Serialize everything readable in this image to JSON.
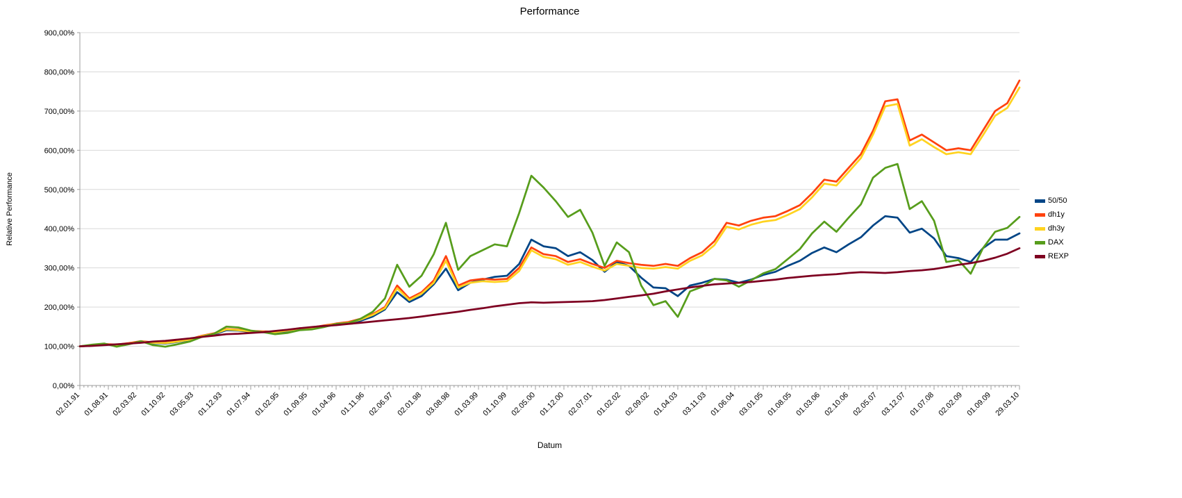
{
  "chart_data": {
    "type": "line",
    "title": "Performance",
    "xlabel": "Datum",
    "ylabel": "Relative Performance",
    "ylim": [
      0,
      900
    ],
    "ytick_step": 100,
    "ytick_labels": [
      "0,00%",
      "100,00%",
      "200,00%",
      "300,00%",
      "400,00%",
      "500,00%",
      "600,00%",
      "700,00%",
      "800,00%",
      "900,00%"
    ],
    "x_tick_labels": [
      "02.01.91",
      "01.08.91",
      "02.03.92",
      "01.10.92",
      "03.05.93",
      "01.12.93",
      "01.07.94",
      "01.02.95",
      "01.09.95",
      "01.04.96",
      "01.11.96",
      "02.06.97",
      "02.01.98",
      "03.08.98",
      "01.03.99",
      "01.10.99",
      "02.05.00",
      "01.12.00",
      "02.07.01",
      "01.02.02",
      "02.09.02",
      "01.04.03",
      "03.11.03",
      "01.06.04",
      "03.01.05",
      "01.08.05",
      "01.03.06",
      "02.10.06",
      "02.05.07",
      "03.12.07",
      "01.07.08",
      "02.02.09",
      "01.09.09",
      "29.03.10"
    ],
    "x_minor_per_major": 7,
    "sampling": "quarterly estimates from 02.01.1991 to 29.03.2010",
    "grid": "horizontal",
    "legend_position": "right",
    "colors": {
      "grid": "#d9d9d9",
      "axis": "#9c9c9c",
      "text": "#000000",
      "background": "#ffffff"
    },
    "series": [
      {
        "name": "50/50",
        "color": "#004586",
        "values": [
          100,
          102,
          105,
          103,
          106,
          111,
          108,
          107,
          111,
          116,
          124,
          130,
          141,
          140,
          137,
          136,
          135,
          138,
          143,
          145,
          150,
          155,
          158,
          165,
          176,
          194,
          238,
          213,
          228,
          258,
          298,
          243,
          262,
          270,
          277,
          280,
          310,
          372,
          355,
          350,
          330,
          340,
          320,
          290,
          315,
          305,
          275,
          250,
          248,
          228,
          255,
          262,
          272,
          270,
          262,
          270,
          282,
          290,
          305,
          318,
          338,
          352,
          340,
          360,
          378,
          408,
          432,
          428,
          390,
          400,
          375,
          330,
          325,
          315,
          350,
          372,
          372,
          388
        ]
      },
      {
        "name": "dh1y",
        "color": "#FF420E",
        "values": [
          100,
          103,
          106,
          104,
          108,
          113,
          110,
          109,
          113,
          118,
          127,
          133,
          144,
          142,
          139,
          138,
          137,
          141,
          146,
          148,
          153,
          158,
          162,
          170,
          182,
          200,
          255,
          222,
          238,
          268,
          330,
          255,
          268,
          272,
          270,
          272,
          300,
          352,
          335,
          330,
          315,
          322,
          310,
          300,
          318,
          312,
          308,
          305,
          310,
          305,
          325,
          340,
          368,
          415,
          408,
          420,
          428,
          432,
          445,
          460,
          490,
          525,
          520,
          555,
          590,
          650,
          725,
          730,
          625,
          640,
          620,
          600,
          605,
          600,
          650,
          700,
          720,
          778
        ]
      },
      {
        "name": "dh3y",
        "color": "#FFD320",
        "values": [
          100,
          102,
          105,
          103,
          107,
          112,
          109,
          108,
          112,
          117,
          126,
          132,
          143,
          141,
          138,
          137,
          136,
          140,
          145,
          147,
          152,
          157,
          160,
          168,
          180,
          197,
          248,
          218,
          234,
          262,
          318,
          250,
          262,
          266,
          264,
          266,
          292,
          345,
          328,
          322,
          308,
          315,
          303,
          293,
          310,
          305,
          300,
          298,
          302,
          298,
          318,
          332,
          358,
          405,
          398,
          410,
          418,
          422,
          435,
          450,
          480,
          515,
          510,
          545,
          580,
          640,
          712,
          718,
          612,
          628,
          608,
          590,
          595,
          590,
          638,
          688,
          708,
          760
        ]
      },
      {
        "name": "DAX",
        "color": "#579D1C",
        "values": [
          100,
          104,
          107,
          99,
          105,
          113,
          103,
          99,
          105,
          112,
          124,
          132,
          150,
          148,
          140,
          136,
          131,
          134,
          141,
          143,
          149,
          157,
          159,
          170,
          188,
          222,
          308,
          252,
          280,
          335,
          415,
          295,
          330,
          345,
          360,
          355,
          440,
          535,
          505,
          470,
          430,
          448,
          390,
          305,
          365,
          340,
          255,
          205,
          215,
          175,
          240,
          252,
          272,
          268,
          252,
          268,
          286,
          297,
          322,
          348,
          388,
          418,
          392,
          428,
          462,
          530,
          555,
          565,
          450,
          470,
          420,
          315,
          320,
          285,
          350,
          392,
          402,
          430
        ]
      },
      {
        "name": "REXP",
        "color": "#7E0021",
        "values": [
          100,
          101,
          103,
          105,
          107,
          109,
          112,
          114,
          117,
          120,
          124,
          127,
          131,
          132,
          134,
          136,
          139,
          142,
          146,
          149,
          152,
          154,
          157,
          160,
          163,
          166,
          169,
          172,
          176,
          180,
          184,
          188,
          193,
          197,
          202,
          206,
          210,
          212,
          211,
          212,
          213,
          214,
          215,
          218,
          222,
          226,
          230,
          234,
          240,
          245,
          250,
          254,
          258,
          260,
          262,
          264,
          267,
          270,
          274,
          277,
          280,
          282,
          284,
          287,
          289,
          288,
          287,
          289,
          292,
          294,
          297,
          302,
          308,
          312,
          318,
          326,
          336,
          350
        ]
      }
    ]
  }
}
